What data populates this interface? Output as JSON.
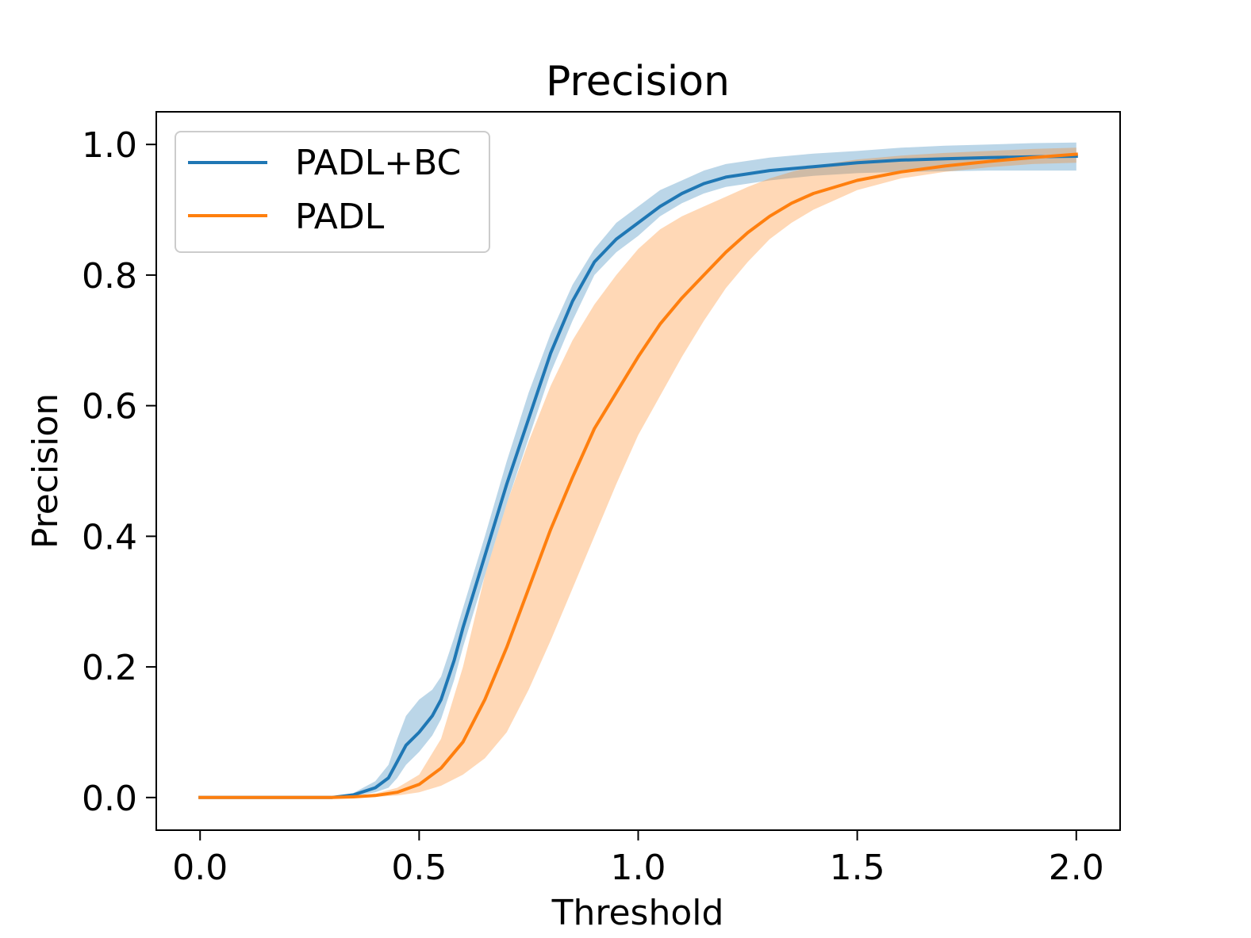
{
  "chart_data": {
    "type": "line",
    "title": "Precision",
    "xlabel": "Threshold",
    "ylabel": "Precision",
    "xlim": [
      -0.1,
      2.1
    ],
    "ylim": [
      -0.05,
      1.05
    ],
    "xticks": [
      0.0,
      0.5,
      1.0,
      1.5,
      2.0
    ],
    "xtick_labels": [
      "0.0",
      "0.5",
      "1.0",
      "1.5",
      "2.0"
    ],
    "yticks": [
      0.0,
      0.2,
      0.4,
      0.6,
      0.8,
      1.0
    ],
    "ytick_labels": [
      "0.0",
      "0.2",
      "0.4",
      "0.6",
      "0.8",
      "1.0"
    ],
    "grid": false,
    "legend": {
      "position": "upper left"
    },
    "series": [
      {
        "name": "PADL+BC",
        "color": "#1f77b4",
        "x": [
          0.0,
          0.1,
          0.2,
          0.3,
          0.35,
          0.4,
          0.43,
          0.45,
          0.47,
          0.5,
          0.53,
          0.55,
          0.58,
          0.6,
          0.65,
          0.7,
          0.75,
          0.8,
          0.85,
          0.9,
          0.95,
          1.0,
          1.05,
          1.1,
          1.15,
          1.2,
          1.3,
          1.4,
          1.5,
          1.6,
          1.7,
          1.8,
          1.9,
          2.0
        ],
        "y": [
          0.0,
          0.0,
          0.0,
          0.0,
          0.004,
          0.015,
          0.03,
          0.055,
          0.08,
          0.1,
          0.125,
          0.15,
          0.21,
          0.26,
          0.37,
          0.48,
          0.58,
          0.68,
          0.76,
          0.82,
          0.855,
          0.88,
          0.905,
          0.925,
          0.94,
          0.95,
          0.96,
          0.966,
          0.972,
          0.976,
          0.978,
          0.98,
          0.981,
          0.982
        ],
        "lower": [
          0.0,
          0.0,
          0.0,
          0.0,
          0.002,
          0.008,
          0.015,
          0.03,
          0.05,
          0.07,
          0.095,
          0.12,
          0.18,
          0.23,
          0.34,
          0.45,
          0.55,
          0.65,
          0.73,
          0.8,
          0.835,
          0.86,
          0.89,
          0.91,
          0.925,
          0.935,
          0.945,
          0.952,
          0.956,
          0.958,
          0.959,
          0.96,
          0.96,
          0.96
        ],
        "upper": [
          0.0,
          0.0,
          0.0,
          0.001,
          0.007,
          0.025,
          0.05,
          0.09,
          0.125,
          0.15,
          0.165,
          0.185,
          0.245,
          0.29,
          0.4,
          0.515,
          0.62,
          0.71,
          0.785,
          0.84,
          0.88,
          0.905,
          0.93,
          0.945,
          0.96,
          0.97,
          0.98,
          0.986,
          0.99,
          0.995,
          0.998,
          1.0,
          1.002,
          1.003
        ]
      },
      {
        "name": "PADL",
        "color": "#ff7f0e",
        "x": [
          0.0,
          0.1,
          0.2,
          0.3,
          0.35,
          0.4,
          0.45,
          0.5,
          0.55,
          0.6,
          0.65,
          0.7,
          0.75,
          0.8,
          0.85,
          0.9,
          0.95,
          1.0,
          1.05,
          1.1,
          1.15,
          1.2,
          1.25,
          1.3,
          1.35,
          1.4,
          1.5,
          1.6,
          1.7,
          1.8,
          1.9,
          2.0
        ],
        "y": [
          0.0,
          0.0,
          0.0,
          0.0,
          0.001,
          0.003,
          0.008,
          0.02,
          0.045,
          0.085,
          0.15,
          0.23,
          0.32,
          0.41,
          0.49,
          0.565,
          0.62,
          0.675,
          0.725,
          0.765,
          0.8,
          0.835,
          0.865,
          0.89,
          0.91,
          0.925,
          0.945,
          0.958,
          0.967,
          0.974,
          0.98,
          0.985
        ],
        "lower": [
          0.0,
          0.0,
          0.0,
          0.0,
          0.0,
          0.001,
          0.003,
          0.008,
          0.018,
          0.035,
          0.06,
          0.1,
          0.165,
          0.24,
          0.32,
          0.4,
          0.48,
          0.555,
          0.615,
          0.675,
          0.73,
          0.78,
          0.82,
          0.855,
          0.88,
          0.9,
          0.93,
          0.948,
          0.958,
          0.965,
          0.97,
          0.972
        ],
        "upper": [
          0.0,
          0.0,
          0.0,
          0.0,
          0.002,
          0.006,
          0.015,
          0.035,
          0.09,
          0.2,
          0.34,
          0.45,
          0.545,
          0.63,
          0.7,
          0.755,
          0.8,
          0.84,
          0.87,
          0.89,
          0.905,
          0.92,
          0.935,
          0.948,
          0.958,
          0.967,
          0.977,
          0.983,
          0.987,
          0.99,
          0.993,
          0.995
        ]
      }
    ]
  }
}
